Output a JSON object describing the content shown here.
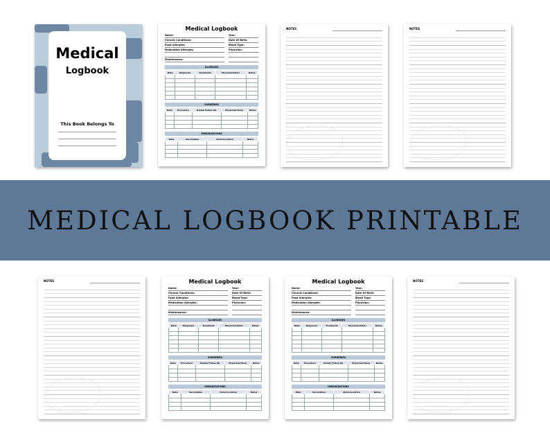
{
  "banner": {
    "title": "MEDICAL LOGBOOK PRINTABLE",
    "color": "#5e7897"
  },
  "cover": {
    "title": "Medical",
    "subtitle": "Logbook",
    "belongs": "This Book Belongs To"
  },
  "logbook": {
    "title": "Medical Logbook",
    "fields": [
      "Name:",
      "Year:",
      "Chronic Conditions:",
      "Date Of Birth:",
      "Food Allergies:",
      "Blood Type:",
      "Medication Allergies:",
      "Physician:",
      "",
      "",
      "Maintenance:",
      ""
    ],
    "sections": [
      {
        "title": "ILLNESSES",
        "columns": [
          "Date",
          "Diagnosis",
          "Treatment",
          "Physician/Clinic",
          "Notes"
        ],
        "rows": 6
      },
      {
        "title": "SURGERIES",
        "columns": [
          "Date",
          "Procedure",
          "Rehab Follow Up",
          "Physician/Hosp",
          "Notes"
        ],
        "rows": 4
      },
      {
        "title": "IMMUNIZATIONS",
        "columns": [
          "Date",
          "Vaccination",
          "Clinic/Location",
          "Notes"
        ],
        "rows": 4
      }
    ]
  },
  "notes": {
    "label": "NOTES"
  },
  "top_row": [
    "cover",
    "logbook",
    "notes",
    "notes"
  ],
  "bottom_row": [
    "notes",
    "logbook",
    "logbook",
    "notes"
  ]
}
